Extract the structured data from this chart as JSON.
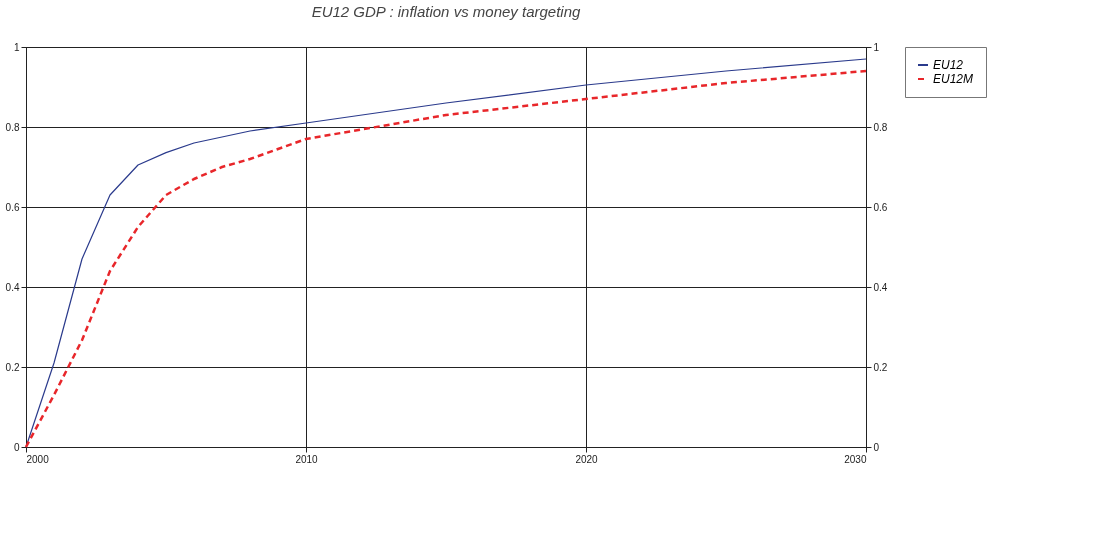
{
  "chart_data": {
    "type": "line",
    "title": "EU12  GDP : inflation vs money targeting",
    "xlim": [
      2000,
      2030
    ],
    "xticks": [
      2000,
      2010,
      2020,
      2030
    ],
    "ylim": [
      0,
      1
    ],
    "yticks": [
      0,
      0.2,
      0.4,
      0.6,
      0.8,
      1
    ],
    "y2lim": [
      0,
      1
    ],
    "y2ticks": [
      0,
      0.2,
      0.4,
      0.6,
      0.8,
      1
    ],
    "grid": true,
    "legend": "right",
    "marker": "none",
    "series": [
      {
        "name": "EU12",
        "color": "#2a3a8c",
        "line_style": "solid",
        "x": [
          2000,
          2001,
          2002,
          2003,
          2004,
          2005,
          2006,
          2008,
          2010,
          2015,
          2020,
          2025,
          2030
        ],
        "values": [
          0,
          0.21,
          0.47,
          0.63,
          0.705,
          0.736,
          0.76,
          0.79,
          0.81,
          0.86,
          0.905,
          0.94,
          0.97
        ]
      },
      {
        "name": "EU12M",
        "color": "#e8262a",
        "line_style": "dashed",
        "x": [
          2000,
          2001,
          2002,
          2003,
          2004,
          2005,
          2006,
          2007,
          2008,
          2009,
          2010,
          2015,
          2020,
          2025,
          2030
        ],
        "values": [
          0,
          0.13,
          0.267,
          0.44,
          0.55,
          0.63,
          0.67,
          0.7,
          0.72,
          0.745,
          0.77,
          0.83,
          0.87,
          0.91,
          0.94
        ]
      }
    ]
  }
}
